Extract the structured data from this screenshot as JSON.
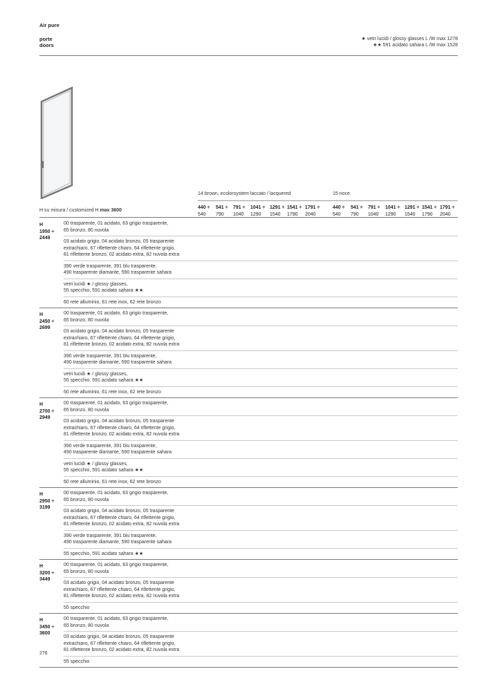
{
  "header": {
    "title": "Air pure",
    "subtitle_it": "porte",
    "subtitle_en": "doors",
    "note1": "★ vetri lucidi / glossy glasses L /W max 1278",
    "note2": "★★ 591 acidato sahara L /W max 1528"
  },
  "image": {
    "icon": "door-icon"
  },
  "table": {
    "customized_label": "H su misura / customized H ",
    "customized_max": "max 3600",
    "finish_groups": [
      {
        "label": "14 brown, ecolorsystem laccato / lacquered",
        "widths": [
          [
            "440 ÷",
            "540"
          ],
          [
            "541 ÷",
            "790"
          ],
          [
            "791 ÷",
            "1040"
          ],
          [
            "1041 ÷",
            "1290"
          ],
          [
            "1291 ÷",
            "1540"
          ],
          [
            "1541 ÷",
            "1790"
          ],
          [
            "1791 ÷",
            "2040"
          ]
        ]
      },
      {
        "label": "15 noce",
        "widths": [
          [
            "440 ÷",
            "540"
          ],
          [
            "541 ÷",
            "790"
          ],
          [
            "791 ÷",
            "1040"
          ],
          [
            "1041 ÷",
            "1290"
          ],
          [
            "1291 ÷",
            "1540"
          ],
          [
            "1541 ÷",
            "1790"
          ],
          [
            "1791 ÷",
            "2040"
          ]
        ]
      }
    ],
    "groups": [
      {
        "label": "H\n1950 ÷\n2449",
        "rows": [
          "00 trasparente, 01 acidato, 63 grigio trasparente,\n65 bronzo, 80 nuvola",
          "03 acidato grigio, 04 acidato bronzo, 05 trasparente\nextrachiaro, 67 riflettente chiaro, 64 riflettente grigio,\n81 riflettente bronzo, 02 acidato extra, 82 nuvola extra",
          "390 verde trasparente, 391 blu trasparente,\n490 trasparente diamante, 590 trasparente sahara",
          "vetri lucidi ★ / glossy glasses,\n55 specchio, 591 acidato sahara ★★",
          "60 rete alluminio, 61 rete inox, 62 rete bronzo"
        ]
      },
      {
        "label": "H\n2450 ÷\n2699",
        "rows": [
          "00 trasparente, 01 acidato, 63 grigio trasparente,\n65 bronzo, 80 nuvola",
          "03 acidato grigio, 04 acidato bronzo, 05 trasparente\nextrachiaro, 67 riflettente chiaro, 64 riflettente grigio,\n81 riflettente bronzo, 02 acidato extra, 82 nuvola extra",
          "390 verde trasparente, 391 blu trasparente,\n490 trasparente diamante, 590 trasparente sahara",
          "vetri lucidi ★ / glossy glasses,\n55 specchio, 591 acidato sahara ★★",
          "60 rete alluminio, 61 rete inox, 62 rete bronzo"
        ]
      },
      {
        "label": "H\n2700 ÷\n2949",
        "rows": [
          "00 trasparente, 01 acidato, 63 grigio trasparente,\n65 bronzo, 80 nuvola",
          "03 acidato grigio, 04 acidato bronzo, 05 trasparente\nextrachiaro, 67 riflettente chiaro, 64 riflettente grigio,\n81 riflettente bronzo, 02 acidato extra, 82 nuvola extra",
          "390 verde trasparente, 391 blu trasparente,\n490 trasparente diamante, 590 trasparente sahara",
          "vetri lucidi ★ / glossy glasses,\n55 specchio, 591 acidato sahara ★★",
          "60 rete alluminio, 61 rete inox, 62 rete bronzo"
        ]
      },
      {
        "label": "H\n2950 ÷\n3199",
        "rows": [
          "00 trasparente, 01 acidato, 63 grigio trasparente,\n65 bronzo, 80 nuvola",
          "03 acidato grigio, 04 acidato bronzo, 05 trasparente\nextrachiaro, 67 riflettente chiaro, 64 riflettente grigio,\n81 riflettente bronzo, 02 acidato extra, 82 nuvola extra",
          "390 verde trasparente, 391 blu trasparente,\n490 trasparente diamante, 590 trasparente sahara",
          "55 specchio, 591 acidato sahara ★★"
        ]
      },
      {
        "label": "H\n3200 ÷\n3449",
        "rows": [
          "00 trasparente, 01 acidato, 63 grigio trasparente,\n65 bronzo, 80 nuvola",
          "03 acidato grigio, 04 acidato bronzo, 05 trasparente\nextrachiaro, 67 riflettente chiaro, 64 riflettente grigio,\n81 riflettente bronzo, 02 acidato extra, 82 nuvola extra",
          "55 specchio"
        ]
      },
      {
        "label": "H\n3450 ÷\n3600",
        "rows": [
          "00 trasparente, 01 acidato, 63 grigio trasparente,\n65 bronzo, 80 nuvola",
          "03 acidato grigio, 04 acidato bronzo, 05 trasparente\nextrachiaro, 67 riflettente chiaro, 64 riflettente grigio,\n81 riflettente bronzo, 02 acidato extra, 82 nuvola extra",
          "55 specchio"
        ]
      }
    ]
  },
  "footer": {
    "page_number": "276"
  }
}
